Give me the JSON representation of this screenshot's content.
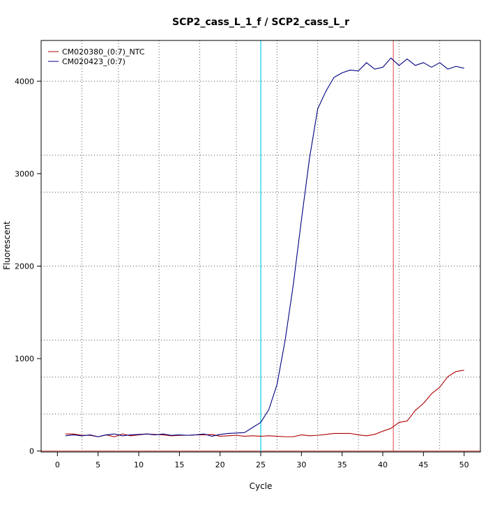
{
  "chart_data": {
    "type": "line",
    "title": "SCP2_cass_L_1_f / SCP2_cass_L_r",
    "xlabel": "Cycle",
    "ylabel": "Fluorescent",
    "xlim": [
      -2,
      52
    ],
    "ylim": [
      -10,
      4440
    ],
    "x_ticks": [
      0,
      5,
      10,
      15,
      20,
      25,
      30,
      35,
      40,
      45,
      50
    ],
    "y_ticks": [
      0,
      1000,
      2000,
      3000,
      4000
    ],
    "grid": true,
    "grid_style": "dotted",
    "grid_x": [
      3,
      7.5,
      12.5,
      17.5,
      22,
      27,
      32,
      37,
      42,
      47
    ],
    "grid_y": [
      400,
      800,
      1200,
      2000,
      2800,
      3200,
      4000
    ],
    "legend_position": "top-left",
    "x": [
      1,
      2,
      3,
      4,
      5,
      6,
      7,
      8,
      9,
      10,
      11,
      12,
      13,
      14,
      15,
      16,
      17,
      18,
      19,
      20,
      21,
      22,
      23,
      24,
      25,
      26,
      27,
      28,
      29,
      30,
      31,
      32,
      33,
      34,
      35,
      36,
      37,
      38,
      39,
      40,
      41,
      42,
      43,
      44,
      45,
      46,
      47,
      48,
      49,
      50
    ],
    "series": [
      {
        "name": "CM020380_(0:7)_NTC",
        "color": "#b00000",
        "values": [
          185,
          185,
          170,
          170,
          155,
          175,
          155,
          185,
          165,
          175,
          185,
          180,
          175,
          165,
          170,
          170,
          175,
          175,
          180,
          160,
          165,
          170,
          160,
          165,
          160,
          165,
          160,
          155,
          155,
          175,
          165,
          170,
          180,
          190,
          190,
          190,
          175,
          165,
          180,
          215,
          245,
          310,
          325,
          440,
          515,
          620,
          690,
          805,
          860,
          875
        ]
      },
      {
        "name": "CM020423_(0:7)",
        "color": "#000080",
        "values": [
          165,
          175,
          165,
          175,
          155,
          175,
          185,
          165,
          175,
          180,
          185,
          175,
          185,
          170,
          175,
          170,
          175,
          185,
          160,
          180,
          190,
          195,
          200,
          255,
          310,
          450,
          720,
          1200,
          1800,
          2500,
          3170,
          3700,
          3890,
          4040,
          4090,
          4120,
          4110,
          4200,
          4130,
          4150,
          4250,
          4170,
          4240,
          4170,
          4200,
          4150,
          4200,
          4130,
          4160,
          4140
        ]
      }
    ],
    "vlines": [
      {
        "x": 25,
        "color": "#00d0e8"
      },
      {
        "x": 41.3,
        "color": "#e06060"
      }
    ],
    "hlines": [
      {
        "y": 0,
        "color": "#d07070"
      }
    ]
  }
}
